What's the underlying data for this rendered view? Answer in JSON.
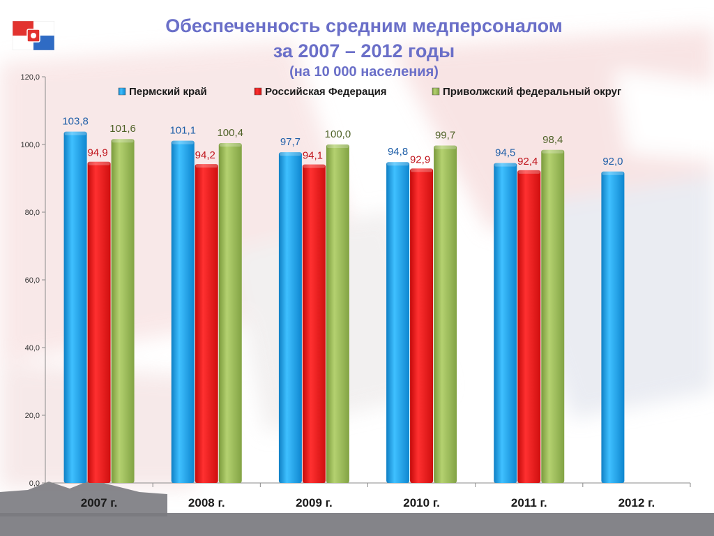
{
  "title": {
    "line1": "Обеспеченность средним медперсоналом",
    "line2": "за 2007 – 2012 годы",
    "line3": "(на 10 000 населения)"
  },
  "colors": {
    "title": "#6a6fc8",
    "flag_red": "#e2332f",
    "flag_blue": "#2f6bc4",
    "flag_white": "#ffffff"
  },
  "chart_data": {
    "type": "bar",
    "categories": [
      "2007 г.",
      "2008 г.",
      "2009 г.",
      "2010 г.",
      "2011 г.",
      "2012 г."
    ],
    "series": [
      {
        "name": "Пермский край",
        "color": "#1aa3ea",
        "label_color": "#1f5fa8",
        "values": [
          103.8,
          101.1,
          97.7,
          94.8,
          94.5,
          92.0
        ],
        "labels": [
          "103,8",
          "101,1",
          "97,7",
          "94,8",
          "94,5",
          "92,0"
        ]
      },
      {
        "name": "Российская Федерация",
        "color": "#ee1c1c",
        "label_color": "#c0141c",
        "values": [
          94.9,
          94.2,
          94.1,
          92.9,
          92.4,
          null
        ],
        "labels": [
          "94,9",
          "94,2",
          "94,1",
          "92,9",
          "92,4",
          ""
        ]
      },
      {
        "name": "Приволжский федеральный округ",
        "color": "#9bbb59",
        "label_color": "#4f6228",
        "values": [
          101.6,
          100.4,
          100.0,
          99.7,
          98.4,
          null
        ],
        "labels": [
          "101,6",
          "100,4",
          "100,0",
          "99,7",
          "98,4",
          ""
        ]
      }
    ],
    "ylim": [
      0,
      120
    ],
    "yticks": [
      0,
      20,
      40,
      60,
      80,
      100,
      120
    ],
    "ytick_labels": [
      "0,0",
      "20,0",
      "40,0",
      "60,0",
      "80,0",
      "100,0",
      "120,0"
    ],
    "grid": false,
    "legend_position": "top"
  }
}
